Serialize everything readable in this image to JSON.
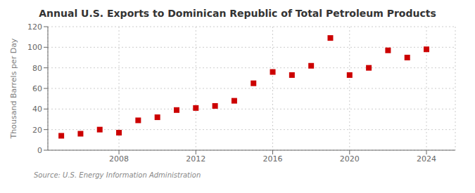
{
  "chart_data": {
    "type": "scatter",
    "title": "Annual U.S. Exports to Dominican Republic of Total Petroleum Products",
    "ylabel": "Thousand Barrels per Day",
    "annotations": [
      "Source: U.S. Energy Information Administration"
    ],
    "x": [
      2005,
      2006,
      2007,
      2008,
      2009,
      2010,
      2011,
      2012,
      2013,
      2014,
      2015,
      2016,
      2017,
      2018,
      2019,
      2020,
      2021,
      2022,
      2023,
      2024
    ],
    "values": [
      14,
      16,
      20,
      17,
      29,
      32,
      39,
      41,
      43,
      48,
      65,
      76,
      73,
      82,
      109,
      73,
      80,
      97,
      90,
      98
    ],
    "color": "#cc0000",
    "marker": "square",
    "xlim": [
      2004.3,
      2025.5
    ],
    "xticks": [
      2008,
      2012,
      2016,
      2020,
      2024
    ],
    "ylim": [
      0,
      120
    ],
    "yticks": [
      0,
      20,
      40,
      60,
      80,
      100,
      120
    ],
    "grid": true
  }
}
